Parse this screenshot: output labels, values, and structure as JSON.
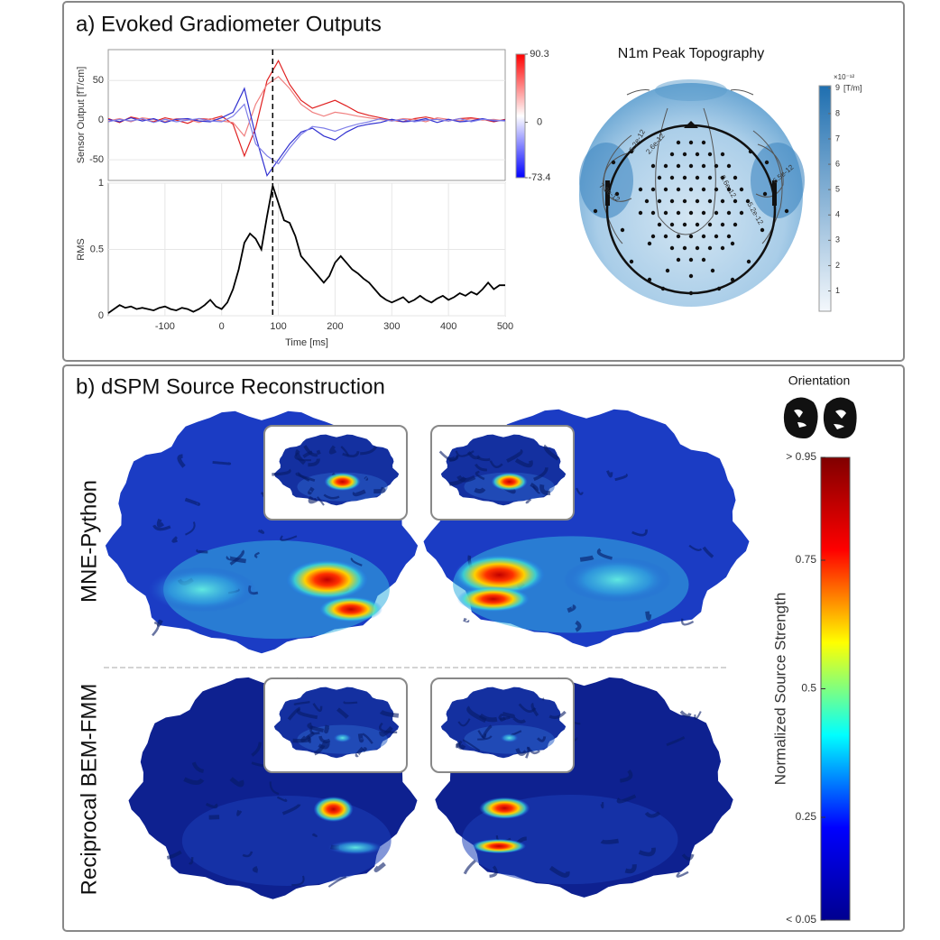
{
  "panels": {
    "a_title": "a) Evoked Gradiometer Outputs",
    "b_title": "b) dSPM Source Reconstruction",
    "row_labels": [
      "MNE-Python",
      "Reciprocal BEM-FMM"
    ],
    "orientation": "Orientation"
  },
  "chart_data": [
    {
      "type": "line",
      "ylabel": "Sensor Output [fT/cm]",
      "x": [
        -200,
        -180,
        -160,
        -140,
        -120,
        -100,
        -80,
        -60,
        -40,
        -20,
        0,
        20,
        40,
        60,
        80,
        100,
        120,
        140,
        160,
        180,
        200,
        220,
        240,
        260,
        280,
        300,
        320,
        340,
        360,
        380,
        400,
        420,
        440,
        460,
        480,
        500
      ],
      "series": [
        {
          "color": "#e02020",
          "values": [
            2,
            -3,
            4,
            1,
            -2,
            3,
            0,
            -4,
            2,
            1,
            5,
            -5,
            -45,
            -10,
            50,
            75,
            45,
            25,
            15,
            20,
            25,
            18,
            10,
            6,
            3,
            0,
            -2,
            2,
            4,
            1,
            -1,
            2,
            3,
            1,
            -2,
            1
          ]
        },
        {
          "color": "#f08080",
          "values": [
            -1,
            2,
            -2,
            3,
            1,
            -2,
            2,
            1,
            -3,
            2,
            -1,
            -3,
            -20,
            20,
            45,
            55,
            40,
            20,
            10,
            5,
            10,
            8,
            5,
            3,
            1,
            -1,
            2,
            1,
            -2,
            3,
            1,
            -1,
            2,
            0,
            1,
            -1
          ]
        },
        {
          "color": "#3030d0",
          "values": [
            1,
            -2,
            3,
            -1,
            2,
            -3,
            1,
            2,
            -1,
            -2,
            3,
            10,
            40,
            -20,
            -70,
            -50,
            -30,
            -15,
            -10,
            -20,
            -25,
            -15,
            -8,
            -5,
            -3,
            1,
            -2,
            -1,
            2,
            -3,
            1,
            -2,
            -1,
            2,
            -1,
            0
          ]
        },
        {
          "color": "#8080e8",
          "values": [
            -2,
            1,
            -1,
            2,
            -3,
            1,
            -2,
            0,
            2,
            -1,
            -2,
            5,
            20,
            -30,
            -45,
            -55,
            -35,
            -18,
            -8,
            -10,
            -14,
            -9,
            -5,
            -2,
            2,
            -1,
            1,
            -2,
            0,
            1,
            -1,
            2,
            -2,
            1,
            0,
            -1
          ]
        }
      ],
      "xlim": [
        -200,
        500
      ],
      "ylim": [
        -76,
        89
      ],
      "yticks": [
        -50,
        0,
        50
      ],
      "peak_x": 90,
      "clim": [
        -73.4,
        90.3
      ],
      "cticks": [
        -73.4,
        0,
        90.3
      ],
      "ccolors": [
        "#0000ff",
        "#ffffff",
        "#ff0000"
      ]
    },
    {
      "type": "line",
      "ylabel": "RMS",
      "xlabel": "Time [ms]",
      "color": "#000000",
      "x": [
        -200,
        -190,
        -180,
        -170,
        -160,
        -150,
        -140,
        -130,
        -120,
        -110,
        -100,
        -90,
        -80,
        -70,
        -60,
        -50,
        -40,
        -30,
        -20,
        -10,
        0,
        10,
        20,
        30,
        40,
        50,
        60,
        70,
        80,
        90,
        100,
        110,
        120,
        130,
        140,
        150,
        160,
        170,
        180,
        190,
        200,
        210,
        220,
        230,
        240,
        250,
        260,
        270,
        280,
        290,
        300,
        310,
        320,
        330,
        340,
        350,
        360,
        370,
        380,
        390,
        400,
        410,
        420,
        430,
        440,
        450,
        460,
        470,
        480,
        490,
        500
      ],
      "values": [
        0.02,
        0.05,
        0.08,
        0.06,
        0.07,
        0.05,
        0.06,
        0.05,
        0.04,
        0.06,
        0.07,
        0.05,
        0.04,
        0.06,
        0.05,
        0.03,
        0.05,
        0.08,
        0.12,
        0.07,
        0.05,
        0.1,
        0.2,
        0.35,
        0.55,
        0.62,
        0.58,
        0.5,
        0.75,
        0.98,
        0.85,
        0.72,
        0.7,
        0.6,
        0.45,
        0.4,
        0.35,
        0.3,
        0.25,
        0.3,
        0.4,
        0.45,
        0.4,
        0.35,
        0.32,
        0.28,
        0.25,
        0.2,
        0.15,
        0.12,
        0.1,
        0.12,
        0.14,
        0.1,
        0.12,
        0.15,
        0.12,
        0.1,
        0.13,
        0.15,
        0.12,
        0.14,
        0.17,
        0.15,
        0.18,
        0.16,
        0.2,
        0.25,
        0.2,
        0.23,
        0.23
      ],
      "xlim": [
        -200,
        500
      ],
      "ylim": [
        0,
        1
      ],
      "yticks": [
        0,
        0.5,
        1
      ],
      "xticks": [
        -100,
        0,
        100,
        200,
        300,
        400,
        500
      ],
      "peak_x": 90
    },
    {
      "type": "topomap",
      "title": "N1m Peak Topography",
      "unit": "[T/m]",
      "exponent": "×10⁻¹²",
      "clim": [
        0.2,
        9.1
      ],
      "cticks": [
        1,
        2,
        3,
        4,
        5,
        6,
        7,
        8,
        9
      ],
      "ccolors": [
        "#f4f8fc",
        "#1f6fb0"
      ],
      "contour_labels": [
        "7.9e-12",
        "5.2e-12",
        "2.6e-12",
        "2.6e-12",
        "6.5e-12",
        "5.2e-12"
      ]
    },
    {
      "type": "colorbar",
      "label": "Normalized Source Strength",
      "clim": [
        0.05,
        0.95
      ],
      "cticks": [
        {
          "value": 0.95,
          "label": "> 0.95"
        },
        0.75,
        0.5,
        0.25,
        {
          "value": 0.05,
          "label": "< 0.05"
        }
      ],
      "ccolors": [
        "#00008f",
        "#0000ff",
        "#00ffff",
        "#ffff00",
        "#ff0000",
        "#800000"
      ]
    }
  ]
}
